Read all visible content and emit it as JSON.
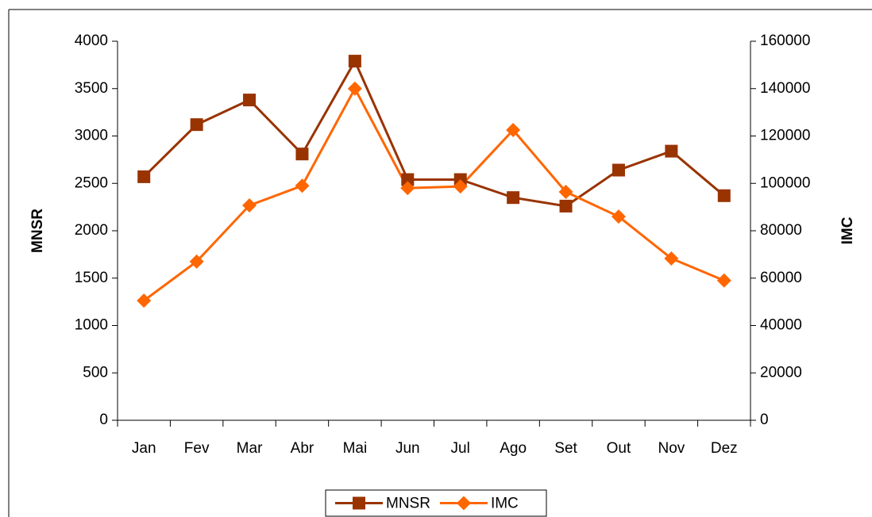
{
  "chart_data": {
    "type": "line",
    "categories": [
      "Jan",
      "Fev",
      "Mar",
      "Abr",
      "Mai",
      "Jun",
      "Jul",
      "Ago",
      "Set",
      "Out",
      "Nov",
      "Dez"
    ],
    "series": [
      {
        "name": "MNSR",
        "color": "#993300",
        "marker": "square",
        "values": [
          2570,
          3120,
          3380,
          2810,
          3790,
          2540,
          2540,
          2350,
          2260,
          2640,
          2840,
          2370
        ]
      },
      {
        "name": "IMC",
        "color": "#ff6600",
        "marker": "diamond",
        "axis": "y2",
        "values": [
          50500,
          67000,
          90700,
          99000,
          140000,
          98000,
          98700,
          122500,
          96400,
          86000,
          68300,
          59000
        ]
      }
    ],
    "ylabel": "MNSR",
    "y2label": "IMC",
    "ylim": [
      0,
      4000
    ],
    "yticks": [
      0,
      500,
      1000,
      1500,
      2000,
      2500,
      3000,
      3500,
      4000
    ],
    "y2lim": [
      0,
      160000
    ],
    "y2ticks": [
      0,
      20000,
      40000,
      60000,
      80000,
      100000,
      120000,
      140000,
      160000
    ],
    "legend": "bottom",
    "grid": false
  }
}
